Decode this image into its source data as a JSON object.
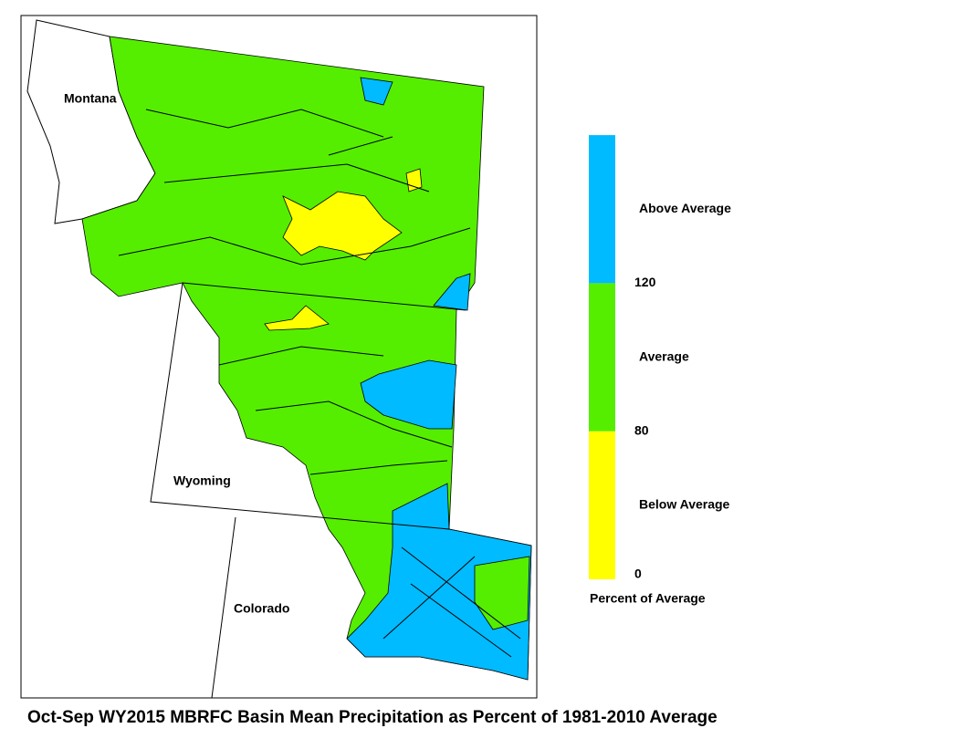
{
  "states": [
    "Montana",
    "Wyoming",
    "Colorado"
  ],
  "legend": {
    "title": "Percent of Average",
    "classes": [
      {
        "label": "Below Average",
        "color": "#ffff00"
      },
      {
        "label": "Average",
        "color": "#55ee00"
      },
      {
        "label": "Above Average",
        "color": "#00bbff"
      }
    ],
    "breaks": [
      "0",
      "80",
      "120"
    ]
  },
  "title": "Oct-Sep WY2015 MBRFC Basin Mean Precipitation as Percent of 1981-2010 Average"
}
